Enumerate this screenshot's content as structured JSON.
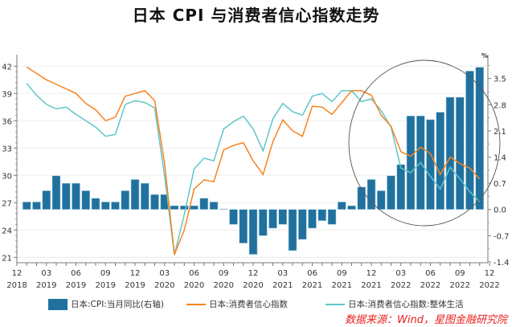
{
  "chart_data": {
    "type": "bar+line",
    "title": "日本 CPI 与消费者信心指数走势",
    "months": [
      "2019-01",
      "2019-02",
      "2019-03",
      "2019-04",
      "2019-05",
      "2019-06",
      "2019-07",
      "2019-08",
      "2019-09",
      "2019-10",
      "2019-11",
      "2019-12",
      "2020-01",
      "2020-02",
      "2020-03",
      "2020-04",
      "2020-05",
      "2020-06",
      "2020-07",
      "2020-08",
      "2020-09",
      "2020-10",
      "2020-11",
      "2020-12",
      "2021-01",
      "2021-02",
      "2021-03",
      "2021-04",
      "2021-05",
      "2021-06",
      "2021-07",
      "2021-08",
      "2021-09",
      "2021-10",
      "2021-11",
      "2021-12",
      "2022-01",
      "2022-02",
      "2022-03",
      "2022-04",
      "2022-05",
      "2022-06",
      "2022-07",
      "2022-08",
      "2022-09",
      "2022-10",
      "2022-11"
    ],
    "x_ticks": [
      {
        "month": "12",
        "year": "2018"
      },
      {
        "month": "03",
        "year": "2019"
      },
      {
        "month": "06",
        "year": "2019"
      },
      {
        "month": "09",
        "year": "2019"
      },
      {
        "month": "12",
        "year": "2019"
      },
      {
        "month": "03",
        "year": "2020"
      },
      {
        "month": "06",
        "year": "2020"
      },
      {
        "month": "09",
        "year": "2020"
      },
      {
        "month": "12",
        "year": "2020"
      },
      {
        "month": "03",
        "year": "2021"
      },
      {
        "month": "06",
        "year": "2021"
      },
      {
        "month": "09",
        "year": "2021"
      },
      {
        "month": "12",
        "year": "2021"
      },
      {
        "month": "03",
        "year": "2022"
      },
      {
        "month": "06",
        "year": "2022"
      },
      {
        "month": "09",
        "year": "2022"
      },
      {
        "month": "12",
        "year": "2022"
      }
    ],
    "left_axis": {
      "range": [
        21,
        42
      ],
      "ticks": [
        "21",
        "24",
        "27",
        "30",
        "33",
        "36",
        "39",
        "42"
      ]
    },
    "right_axis": {
      "range": [
        -1.4,
        3.85
      ],
      "unit": "%",
      "ticks": [
        "-1.4",
        "-0.7",
        "0.0",
        "0.7",
        "1.4",
        "2.1",
        "2.8",
        "3.5"
      ]
    },
    "grid": true,
    "legend_placement": "bottom",
    "series": [
      {
        "name": "日本:CPI:当月同比(右轴)",
        "type": "bar",
        "axis": "right",
        "color": "#21719e",
        "values": [
          0.2,
          0.2,
          0.5,
          0.9,
          0.7,
          0.7,
          0.5,
          0.3,
          0.2,
          0.2,
          0.5,
          0.8,
          0.7,
          0.4,
          0.4,
          0.1,
          0.1,
          0.1,
          0.3,
          0.2,
          0.0,
          -0.4,
          -0.9,
          -1.2,
          -0.7,
          -0.5,
          -0.4,
          -1.1,
          -0.8,
          -0.5,
          -0.3,
          -0.4,
          0.2,
          0.1,
          0.6,
          0.8,
          0.5,
          0.9,
          1.2,
          2.5,
          2.5,
          2.4,
          2.6,
          3.0,
          3.0,
          3.7,
          3.8
        ]
      },
      {
        "name": "日本:消费者信心指数",
        "type": "line",
        "axis": "left",
        "color": "#f5841f",
        "values": [
          41.9,
          41.2,
          40.5,
          40.0,
          39.5,
          39.0,
          37.9,
          37.2,
          36.0,
          36.4,
          38.7,
          39.0,
          39.3,
          38.2,
          31.3,
          21.3,
          24.0,
          28.5,
          29.5,
          29.3,
          32.8,
          33.3,
          33.6,
          31.6,
          30.1,
          33.7,
          36.1,
          34.9,
          34.3,
          37.6,
          37.5,
          36.7,
          38.0,
          39.3,
          39.3,
          38.8,
          36.6,
          35.4,
          32.6,
          32.1,
          33.1,
          32.4,
          30.1,
          32.0,
          31.3,
          30.8,
          29.6
        ]
      },
      {
        "name": "日本:消费者信心指数:整体生活",
        "type": "line",
        "axis": "left",
        "color": "#5fc7c8",
        "values": [
          40.1,
          38.8,
          37.8,
          37.3,
          37.5,
          36.7,
          36.0,
          35.3,
          34.3,
          34.5,
          37.8,
          38.2,
          38.0,
          37.4,
          29.9,
          21.3,
          25.7,
          30.7,
          31.9,
          31.6,
          35.1,
          35.9,
          36.5,
          35.1,
          32.7,
          36.2,
          37.9,
          37.0,
          36.6,
          38.7,
          39.0,
          38.1,
          39.3,
          39.3,
          38.1,
          38.4,
          37.1,
          35.3,
          30.8,
          30.3,
          31.4,
          29.9,
          28.5,
          30.9,
          29.6,
          28.2,
          27.1
        ]
      }
    ],
    "source": "数据来源：Wind，星图金融研究院"
  }
}
